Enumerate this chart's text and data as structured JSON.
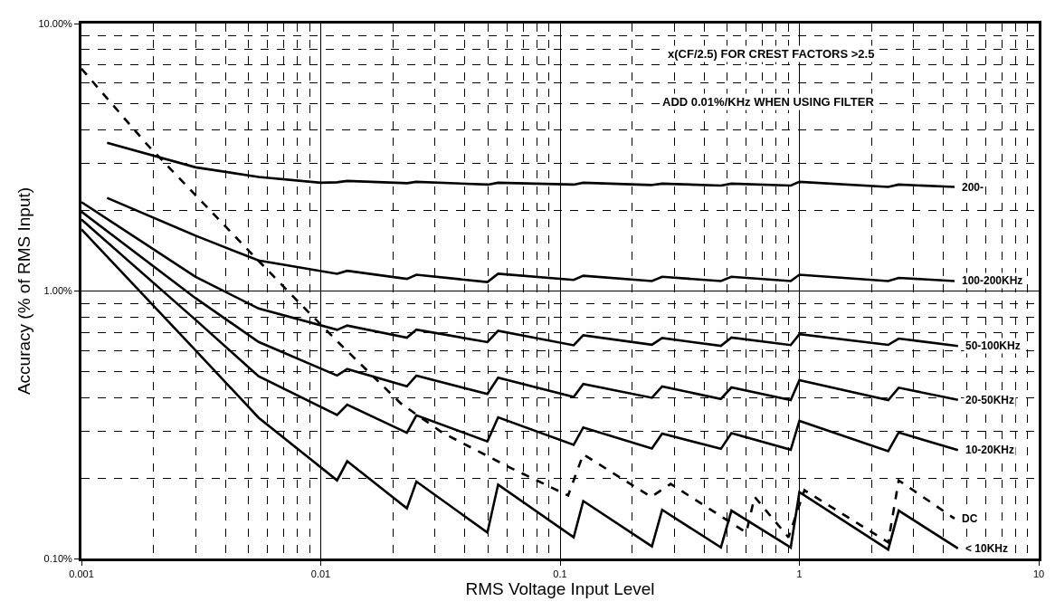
{
  "chart_data": {
    "type": "line",
    "xlabel": "RMS Voltage Input Level",
    "ylabel": "Accuracy (% of RMS Input)",
    "log": "xy",
    "grid": true,
    "legend": false,
    "marker": "none",
    "line_style": "solid",
    "xlim": [
      0.001,
      10
    ],
    "ylim": [
      0.1,
      10
    ],
    "xticks": [
      0.001,
      0.01,
      0.1,
      1,
      10
    ],
    "yticks": [
      {
        "value": 0.1,
        "label": "0.10%"
      },
      {
        "value": 1,
        "label": "1.00%"
      },
      {
        "value": 10,
        "label": "10.00%"
      }
    ],
    "annotations": [
      "x(CF/2.5) FOR CREST FACTORS >2.5",
      "ADD 0.01%/KHz WHEN USING FILTER"
    ],
    "series": [
      {
        "name": "200-",
        "color": "#000000",
        "x": [
          0.00128,
          0.003,
          0.0055,
          0.01,
          0.0117,
          0.0129,
          0.023,
          0.025,
          0.05,
          0.055,
          0.114,
          0.125,
          0.24,
          0.267,
          0.47,
          0.52,
          0.92,
          1.0,
          2.35,
          2.6,
          4.45
        ],
        "values": [
          3.58,
          2.9,
          2.67,
          2.54,
          2.55,
          2.58,
          2.53,
          2.56,
          2.5,
          2.54,
          2.5,
          2.54,
          2.49,
          2.52,
          2.48,
          2.52,
          2.48,
          2.56,
          2.45,
          2.5,
          2.45
        ]
      },
      {
        "name": "100-200KHz",
        "color": "#000000",
        "x": [
          0.00128,
          0.003,
          0.0055,
          0.0117,
          0.0129,
          0.0229,
          0.0251,
          0.0497,
          0.0551,
          0.114,
          0.125,
          0.242,
          0.267,
          0.47,
          0.52,
          0.92,
          1.0,
          2.35,
          2.6,
          4.45
        ],
        "values": [
          2.23,
          1.61,
          1.3,
          1.16,
          1.19,
          1.11,
          1.15,
          1.08,
          1.16,
          1.1,
          1.14,
          1.09,
          1.13,
          1.09,
          1.13,
          1.09,
          1.15,
          1.09,
          1.12,
          1.09
        ]
      },
      {
        "name": "50-100KHz",
        "color": "#000000",
        "x": [
          0.001,
          0.003,
          0.0055,
          0.0117,
          0.0129,
          0.0229,
          0.0251,
          0.0497,
          0.0551,
          0.114,
          0.125,
          0.242,
          0.267,
          0.47,
          0.52,
          0.92,
          1.0,
          2.35,
          2.6,
          4.6
        ],
        "values": [
          2.15,
          1.13,
          0.86,
          0.716,
          0.743,
          0.669,
          0.717,
          0.644,
          0.71,
          0.627,
          0.683,
          0.63,
          0.667,
          0.624,
          0.67,
          0.628,
          0.69,
          0.629,
          0.664,
          0.623
        ]
      },
      {
        "name": "20-50KHz",
        "color": "#000000",
        "x": [
          0.001,
          0.003,
          0.0055,
          0.0117,
          0.0129,
          0.0229,
          0.0251,
          0.0497,
          0.0551,
          0.114,
          0.125,
          0.242,
          0.267,
          0.47,
          0.52,
          0.92,
          1.0,
          2.35,
          2.6,
          4.6
        ],
        "values": [
          1.98,
          0.94,
          0.645,
          0.483,
          0.511,
          0.44,
          0.483,
          0.412,
          0.474,
          0.402,
          0.449,
          0.399,
          0.44,
          0.395,
          0.436,
          0.391,
          0.464,
          0.391,
          0.435,
          0.392
        ]
      },
      {
        "name": "10-20KHz",
        "color": "#000000",
        "x": [
          0.001,
          0.003,
          0.0055,
          0.0117,
          0.0129,
          0.0229,
          0.0251,
          0.0497,
          0.0551,
          0.114,
          0.125,
          0.242,
          0.267,
          0.47,
          0.52,
          0.92,
          1.0,
          2.35,
          2.6,
          4.6
        ],
        "values": [
          1.85,
          0.78,
          0.48,
          0.344,
          0.376,
          0.295,
          0.343,
          0.274,
          0.337,
          0.266,
          0.309,
          0.258,
          0.293,
          0.257,
          0.294,
          0.255,
          0.327,
          0.252,
          0.296,
          0.254
        ]
      },
      {
        "name": "DC",
        "color": "#000000",
        "line_style": "dashed",
        "x": [
          0.001,
          0.00187,
          0.0048,
          0.0077,
          0.0119,
          0.0216,
          0.0323,
          0.061,
          0.108,
          0.125,
          0.24,
          0.29,
          0.6,
          0.65,
          0.9,
          1.05,
          2.35,
          2.6,
          4.45
        ],
        "values": [
          6.78,
          3.55,
          1.47,
          0.95,
          0.64,
          0.38,
          0.295,
          0.22,
          0.172,
          0.245,
          0.17,
          0.19,
          0.125,
          0.17,
          0.12,
          0.18,
          0.115,
          0.196,
          0.141
        ]
      },
      {
        "name": "< 10KHz",
        "color": "#000000",
        "x": [
          0.001,
          0.003,
          0.0055,
          0.0117,
          0.0129,
          0.0229,
          0.0251,
          0.0497,
          0.0551,
          0.114,
          0.125,
          0.242,
          0.267,
          0.47,
          0.52,
          0.92,
          1.0,
          2.35,
          2.6,
          4.6
        ],
        "values": [
          1.7,
          0.6,
          0.336,
          0.196,
          0.231,
          0.154,
          0.194,
          0.125,
          0.189,
          0.12,
          0.164,
          0.111,
          0.152,
          0.11,
          0.151,
          0.11,
          0.177,
          0.108,
          0.151,
          0.109
        ]
      }
    ]
  }
}
